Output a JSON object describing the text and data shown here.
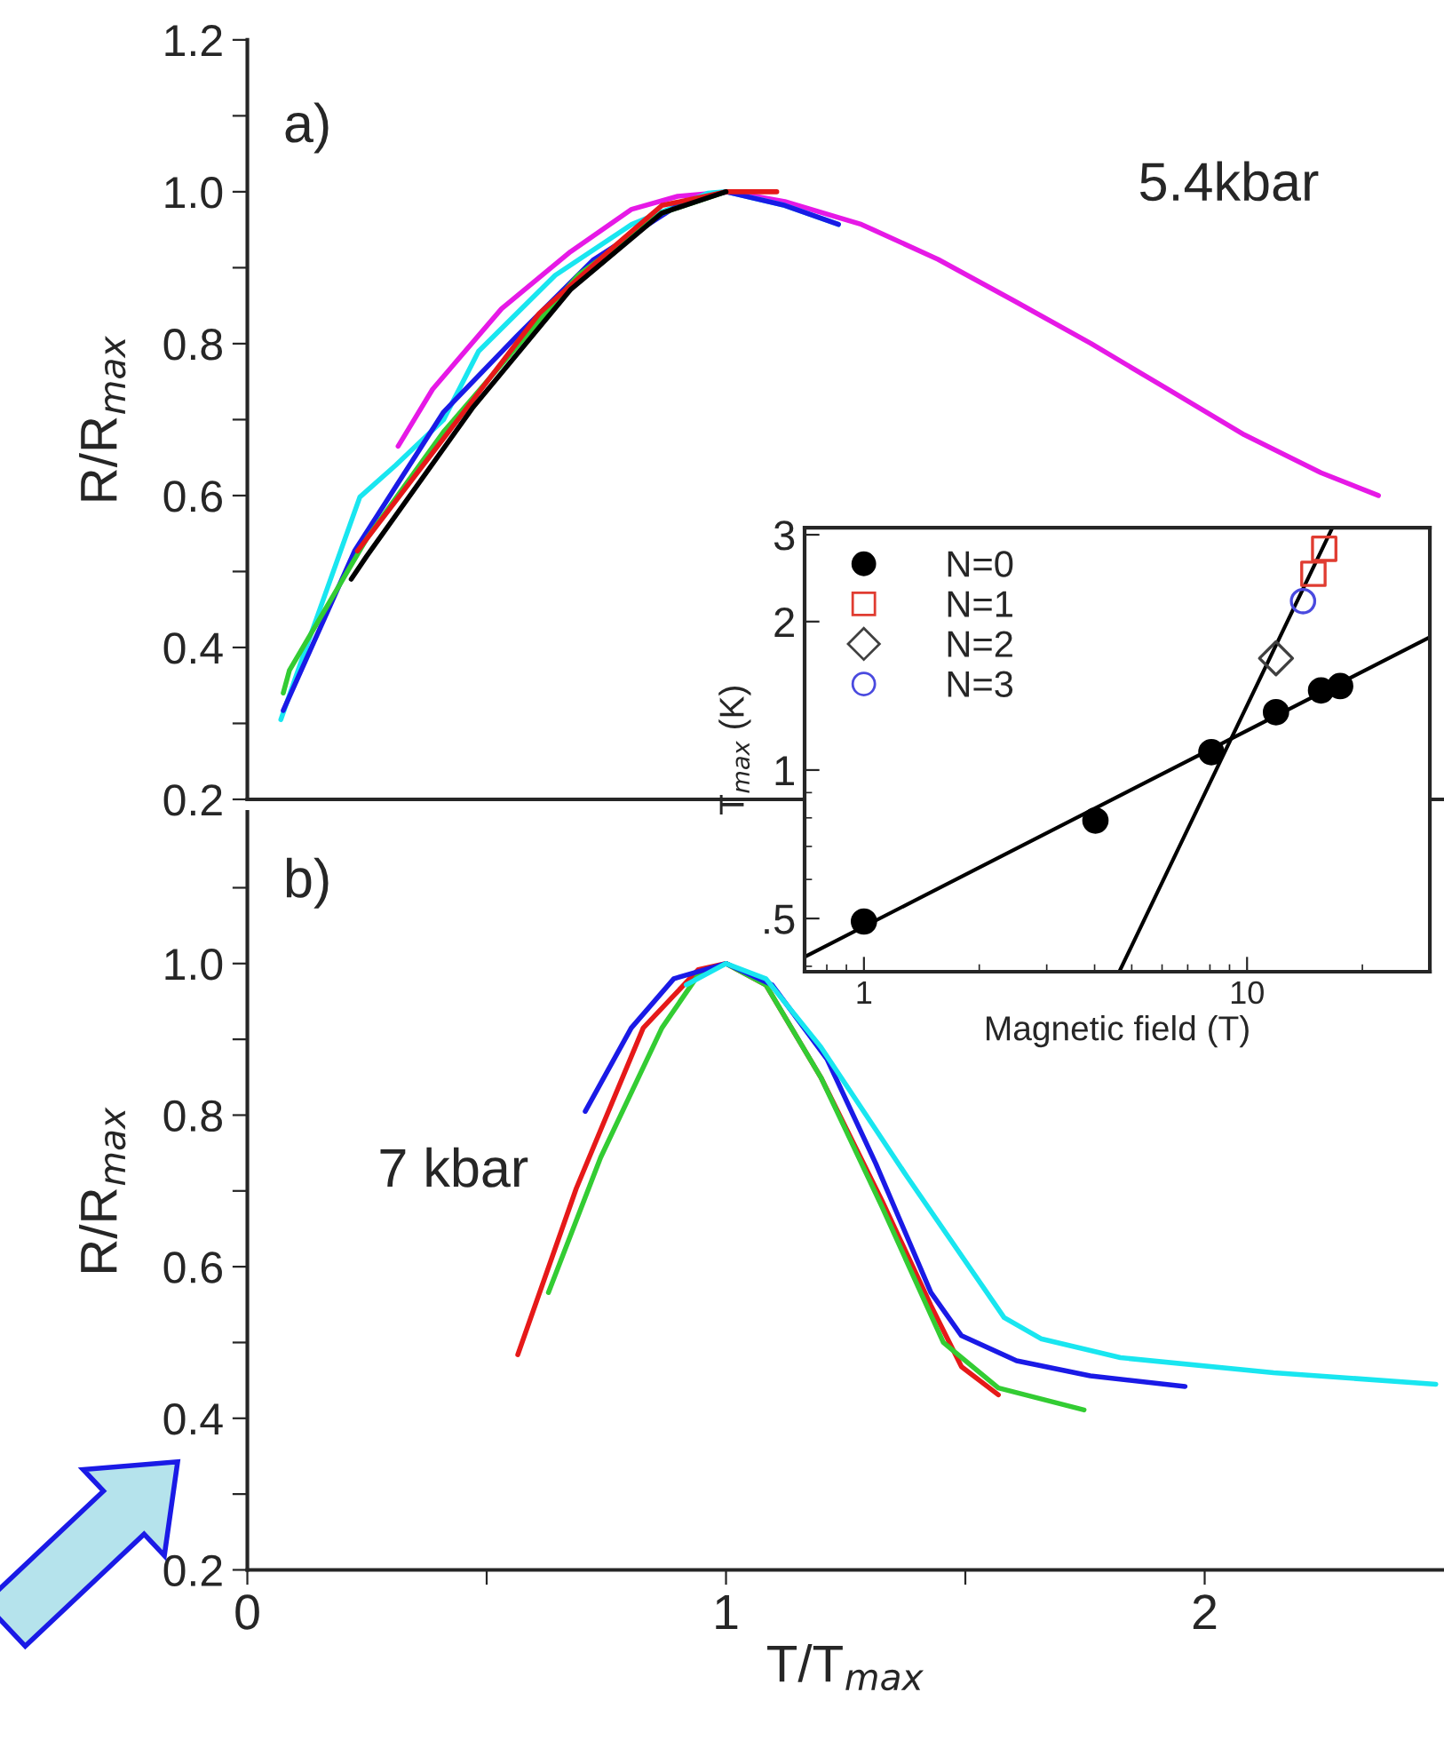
{
  "chart_data": [
    {
      "type": "line",
      "ylabel": "R/R$_{max}$",
      "annotations": [
        "a)",
        "5.4kbar"
      ],
      "xlim": [
        0,
        2.5
      ],
      "ylim": [
        0.2,
        1.2
      ],
      "tick_labels": "y",
      "yticks": [
        0.2,
        {
          "value": 0.3,
          "label": null
        },
        0.4,
        {
          "value": 0.5,
          "label": null
        },
        0.6,
        {
          "value": 0.7,
          "label": null
        },
        0.8,
        {
          "value": 0.9,
          "label": null
        },
        {
          "value": 1.0,
          "label": "1.0"
        },
        {
          "value": 1.1,
          "label": null
        },
        1.2
      ],
      "series": [
        {
          "color": "#e619e6",
          "x": [
            0.315,
            0.387,
            0.531,
            0.675,
            0.803,
            0.899,
            1.01,
            1.123,
            1.283,
            1.443,
            1.603,
            1.763,
            1.923,
            2.083,
            2.243,
            2.363
          ],
          "values": [
            0.665,
            0.74,
            0.846,
            0.921,
            0.977,
            0.994,
            1.0,
            0.987,
            0.957,
            0.911,
            0.856,
            0.8,
            0.74,
            0.68,
            0.63,
            0.6
          ]
        },
        {
          "color": "#19e6f0",
          "x": [
            0.07,
            0.106,
            0.235,
            0.31,
            0.41,
            0.483,
            0.643,
            0.803,
            0.962,
            1.0,
            1.123,
            1.235
          ],
          "values": [
            0.305,
            0.37,
            0.598,
            0.64,
            0.7,
            0.79,
            0.89,
            0.957,
            0.998,
            1.0,
            0.982,
            0.957
          ]
        },
        {
          "color": "#1a1ae6",
          "x": [
            0.075,
            0.224,
            0.41,
            0.563,
            0.722,
            0.899,
            1.0,
            1.123,
            1.235
          ],
          "values": [
            0.317,
            0.527,
            0.71,
            0.81,
            0.91,
            0.982,
            1.0,
            0.982,
            0.957
          ]
        },
        {
          "color": "#33cc33",
          "x": [
            0.075,
            0.088,
            0.25,
            0.41,
            0.691,
            0.866,
            1.0
          ],
          "values": [
            0.34,
            0.37,
            0.544,
            0.684,
            0.89,
            0.972,
            1.0
          ]
        },
        {
          "color": "#e61919",
          "x": [
            0.23,
            0.61,
            0.77,
            0.866,
            1.0,
            1.106
          ],
          "values": [
            0.527,
            0.84,
            0.93,
            0.982,
            1.0,
            1.0
          ]
        },
        {
          "color": "#000000",
          "x": [
            0.217,
            0.249,
            0.47,
            0.675,
            0.866,
            1.0
          ],
          "values": [
            0.49,
            0.52,
            0.715,
            0.871,
            0.972,
            1.0
          ]
        }
      ]
    },
    {
      "type": "line",
      "xlabel": "T/T$_{max}$",
      "ylabel": "R/R$_{max}$",
      "annotations": [
        "b)",
        "7 kbar"
      ],
      "xlim": [
        0,
        2.5
      ],
      "ylim": [
        0.2,
        1.2
      ],
      "xticks": [
        0,
        {
          "value": 0.5,
          "label": null
        },
        1,
        {
          "value": 1.5,
          "label": null
        },
        2
      ],
      "yticks": [
        0.2,
        {
          "value": 0.3,
          "label": null
        },
        0.4,
        {
          "value": 0.5,
          "label": null
        },
        0.6,
        {
          "value": 0.7,
          "label": null
        },
        0.8,
        {
          "value": 0.9,
          "label": null
        },
        {
          "value": 1.0,
          "label": "1.0"
        },
        {
          "value": 1.1,
          "label": null
        }
      ],
      "series": [
        {
          "color": "#e61919",
          "x": [
            0.565,
            0.687,
            0.827,
            0.942,
            1.0,
            1.083,
            1.198,
            1.326,
            1.428,
            1.492,
            1.569
          ],
          "values": [
            0.484,
            0.703,
            0.915,
            0.992,
            1.0,
            0.972,
            0.85,
            0.687,
            0.549,
            0.468,
            0.431
          ]
        },
        {
          "color": "#33cc33",
          "x": [
            0.629,
            0.738,
            0.866,
            0.942,
            1.0,
            1.083,
            1.198,
            1.326,
            1.454,
            1.569,
            1.748
          ],
          "values": [
            0.566,
            0.744,
            0.915,
            0.985,
            1.0,
            0.972,
            0.85,
            0.679,
            0.5,
            0.44,
            0.411
          ]
        },
        {
          "color": "#1a1ae6",
          "x": [
            0.706,
            0.802,
            0.891,
            1.0,
            1.096,
            1.211,
            1.313,
            1.428,
            1.492,
            1.607,
            1.761,
            1.959
          ],
          "values": [
            0.805,
            0.915,
            0.98,
            1.0,
            0.972,
            0.874,
            0.736,
            0.566,
            0.509,
            0.476,
            0.456,
            0.442
          ]
        },
        {
          "color": "#19e6f0",
          "x": [
            0.917,
            1.0,
            1.083,
            1.198,
            1.377,
            1.581,
            1.658,
            1.824,
            2.144,
            2.483
          ],
          "values": [
            0.972,
            1.0,
            0.98,
            0.89,
            0.72,
            0.533,
            0.505,
            0.48,
            0.46,
            0.445
          ]
        }
      ]
    },
    {
      "type": "scatter",
      "xlabel": "Magnetic field (T)",
      "ylabel": "T$_{max}$ (K)",
      "log": "xy",
      "xlim": [
        0.7,
        30
      ],
      "ylim": [
        0.39,
        3.1
      ],
      "legend": "top left",
      "xticks": [
        1,
        10
      ],
      "yticks": [
        {
          "value": 0.5,
          "label": ".5"
        },
        1,
        2,
        3
      ],
      "series": [
        {
          "name": "N=0",
          "color": "#000000",
          "marker": "circle",
          "x": [
            1,
            4.02,
            8.07,
            11.9,
            15.6,
            17.5
          ],
          "values": [
            0.493,
            0.79,
            1.087,
            1.31,
            1.45,
            1.48
          ]
        },
        {
          "name": "N=1",
          "color": "#e03c31",
          "marker": "square",
          "x": [
            14.9,
            15.9
          ],
          "values": [
            2.5,
            2.81
          ]
        },
        {
          "name": "N=2",
          "color": "#404040",
          "marker": "diamond",
          "x": [
            11.9
          ],
          "values": [
            1.685
          ]
        },
        {
          "name": "N=3",
          "color": "#4a4adf",
          "marker": "circle",
          "x": [
            14.0
          ],
          "values": [
            2.2
          ]
        },
        {
          "type": "line",
          "color": "#000000",
          "x": [
            0.7,
            30
          ],
          "values": [
            0.418,
            1.86
          ]
        },
        {
          "type": "line",
          "color": "#000000",
          "x": [
            4.64,
            16.7
          ],
          "values": [
            0.39,
            3.1
          ]
        }
      ]
    }
  ]
}
